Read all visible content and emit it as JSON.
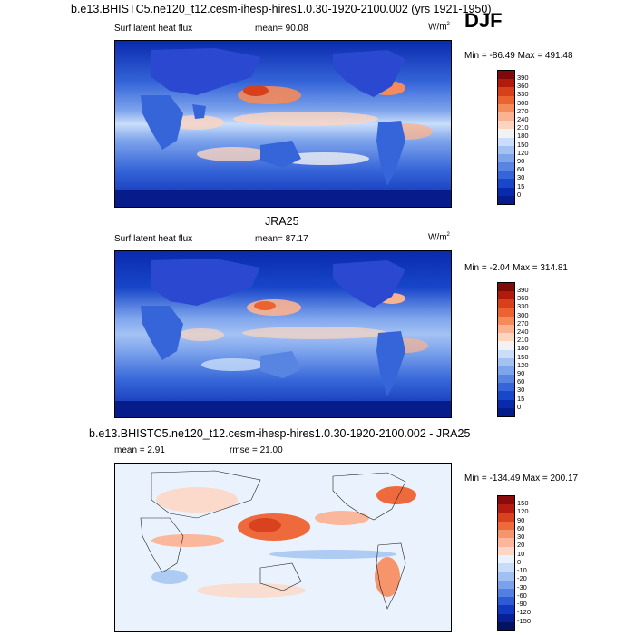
{
  "season": "DJF",
  "panels": [
    {
      "title": "b.e13.BHISTC5.ne120_t12.cesm-ihesp-hires1.0.30-1920-2100.002 (yrs 1921-1950)",
      "left_label": "Surf latent heat flux",
      "center_label": "mean=  90.08",
      "units": "W/m",
      "units_sup": "2",
      "minmax": "Min = -86.49 Max = 491.48",
      "colorbar_ticks": [
        "390",
        "360",
        "330",
        "300",
        "270",
        "240",
        "210",
        "180",
        "150",
        "120",
        "90",
        "60",
        "30",
        "15",
        "0"
      ]
    },
    {
      "title": "JRA25",
      "left_label": "Surf latent heat flux",
      "center_label": "mean=  87.17",
      "units": "W/m",
      "units_sup": "2",
      "minmax": "Min =  -2.04 Max = 314.81",
      "colorbar_ticks": [
        "390",
        "360",
        "330",
        "300",
        "270",
        "240",
        "210",
        "180",
        "150",
        "120",
        "90",
        "60",
        "30",
        "15",
        "0"
      ]
    },
    {
      "title": "b.e13.BHISTC5.ne120_t12.cesm-ihesp-hires1.0.30-1920-2100.002 - JRA25",
      "left_label": "mean =   2.91",
      "center_label": "rmse =  21.00",
      "minmax": "Min = -134.49 Max = 200.17",
      "colorbar_ticks": [
        "150",
        "120",
        "90",
        "60",
        "30",
        "20",
        "10",
        "0",
        "-10",
        "-20",
        "-30",
        "-60",
        "-90",
        "-120",
        "-150"
      ]
    }
  ],
  "colors": {
    "abs_scale": [
      "#7f0a0a",
      "#b11b0c",
      "#d6401a",
      "#ea6330",
      "#f48b5a",
      "#f9b391",
      "#fcd5bf",
      "#f2f2f2",
      "#c9defa",
      "#a3c2f4",
      "#7ea4ec",
      "#5985e2",
      "#3565d8",
      "#1847c9",
      "#0a2aae",
      "#061c8a"
    ],
    "diff_scale": [
      "#8a0b0b",
      "#b41c12",
      "#d9421e",
      "#ee6a3c",
      "#f6946c",
      "#fbb79b",
      "#fdd7c6",
      "#eaf3fd",
      "#c6dcf7",
      "#9fc0f1",
      "#7aa1ea",
      "#537fe0",
      "#2d5bd3",
      "#1238bf",
      "#081f97",
      "#04135f"
    ],
    "land": "#2a49d0"
  }
}
